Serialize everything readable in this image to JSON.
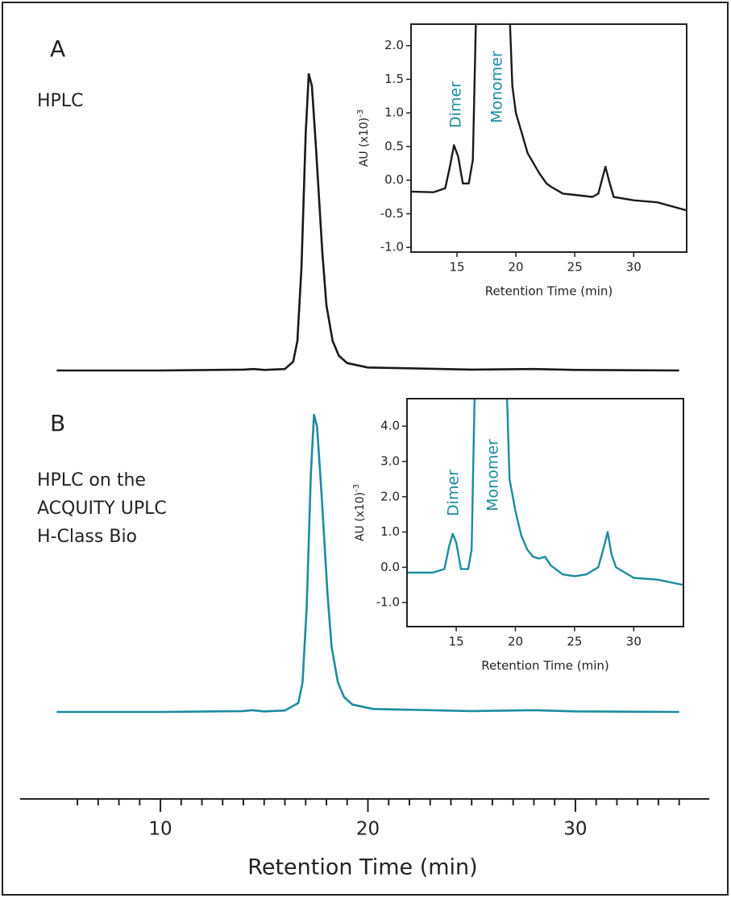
{
  "chart_data": [
    {
      "type": "line",
      "xlabel": "Retention Time (min)",
      "xlim": [
        3.24,
        36.45
      ],
      "xticks": [
        10,
        20,
        30
      ],
      "xminorticks": [
        6,
        7,
        8,
        9,
        11,
        12,
        13,
        14,
        15,
        16,
        17,
        18,
        19,
        21,
        22,
        23,
        24,
        25,
        26,
        27,
        28,
        29,
        31,
        32,
        33,
        34,
        35
      ],
      "panels": [
        {
          "label": "A",
          "name": [
            "HPLC"
          ],
          "color": "#1a1a1a",
          "ylim": [
            0,
            100
          ],
          "x": [
            5,
            10,
            14,
            14.5,
            15,
            16,
            16.4,
            16.6,
            16.8,
            17,
            17.15,
            17.3,
            17.5,
            17.8,
            18,
            18.3,
            18.6,
            19,
            20,
            25,
            28,
            30,
            35
          ],
          "values": [
            0,
            0,
            0.3,
            0.5,
            0.2,
            0.5,
            3,
            10,
            35,
            80,
            100,
            96,
            75,
            40,
            22,
            10,
            5,
            2.5,
            1,
            0.3,
            0.5,
            0.2,
            0
          ]
        },
        {
          "label": "B",
          "name": [
            "HPLC on the",
            "ACQUITY UPLC",
            "H-Class Bio"
          ],
          "color": "#1c8c9e",
          "ylim": [
            0,
            100
          ],
          "x": [
            5,
            10,
            14,
            14.4,
            15,
            16,
            16.65,
            16.85,
            17.05,
            17.25,
            17.4,
            17.55,
            17.75,
            18.05,
            18.25,
            18.55,
            18.85,
            19.25,
            20.25,
            25,
            28,
            30,
            35
          ],
          "values": [
            0,
            0,
            0.3,
            0.6,
            0.2,
            0.5,
            3,
            10,
            35,
            80,
            100,
            96,
            75,
            40,
            22,
            10,
            5,
            2.5,
            1,
            0.3,
            0.6,
            0.2,
            0
          ]
        }
      ]
    },
    {
      "type": "line",
      "xlabel": "Retention Time (min)",
      "ylabel": "AU (x10)",
      "ylabel_exponent": "-3",
      "color": "#1a1a1a",
      "annotations": [
        "Dimer",
        "Monomer"
      ],
      "annotation_color": "#1c8c9e",
      "xlim": [
        11.1,
        34.5
      ],
      "ylim": [
        -1.07,
        2.32
      ],
      "xticks": [
        15,
        20,
        25,
        30
      ],
      "yticks": [
        {
          "value": -1,
          "label": "-1.0"
        },
        -0.5,
        {
          "value": 0,
          "label": "0.0"
        },
        0.5,
        {
          "value": 1,
          "label": "1.0"
        },
        1.5,
        {
          "value": 2,
          "label": "2.0"
        }
      ],
      "x": [
        11.1,
        13,
        14,
        14.4,
        14.75,
        15.1,
        15.5,
        16.0,
        16.35,
        16.6,
        18,
        19.5,
        19.7,
        20,
        20.5,
        21,
        21.5,
        22,
        22.6,
        23,
        24,
        25,
        26.5,
        27,
        27.3,
        27.6,
        27.9,
        28.3,
        30,
        32,
        34.5
      ],
      "values": [
        -0.17,
        -0.18,
        -0.12,
        0.2,
        0.52,
        0.35,
        -0.05,
        -0.05,
        0.3,
        2.32,
        null,
        2.32,
        1.4,
        1.0,
        0.7,
        0.4,
        0.25,
        0.1,
        -0.05,
        -0.1,
        -0.2,
        -0.22,
        -0.25,
        -0.2,
        0.0,
        0.2,
        0.0,
        -0.25,
        -0.3,
        -0.33,
        -0.45
      ]
    },
    {
      "type": "line",
      "xlabel": "Retention Time (min)",
      "ylabel": "AU (x10)",
      "ylabel_exponent": "-3",
      "color": "#1c8c9e",
      "annotations": [
        "Dimer",
        "Monomer"
      ],
      "annotation_color": "#1c8c9e",
      "xlim": [
        10.84,
        34.2
      ],
      "ylim": [
        -1.68,
        4.78
      ],
      "xticks": [
        15,
        20,
        25,
        30
      ],
      "yticks": [
        {
          "value": -1,
          "label": "-1.0"
        },
        {
          "value": 0,
          "label": "0.0"
        },
        {
          "value": 1,
          "label": "1.0"
        },
        {
          "value": 2,
          "label": "2.0"
        },
        {
          "value": 3,
          "label": "3.0"
        },
        {
          "value": 4,
          "label": "4.0"
        }
      ],
      "x": [
        10.84,
        13,
        14,
        14.4,
        14.7,
        15.0,
        15.4,
        16.0,
        16.3,
        16.55,
        18,
        19.3,
        19.5,
        20,
        20.5,
        21,
        21.5,
        22,
        22.5,
        23,
        24,
        25,
        26,
        27,
        27.5,
        27.8,
        28.1,
        28.5,
        30,
        32,
        34.2
      ],
      "values": [
        -0.15,
        -0.15,
        -0.05,
        0.6,
        0.95,
        0.7,
        -0.05,
        -0.05,
        0.5,
        4.78,
        null,
        4.78,
        2.5,
        1.6,
        0.9,
        0.5,
        0.3,
        0.25,
        0.3,
        0.05,
        -0.2,
        -0.25,
        -0.2,
        0.0,
        0.6,
        1.0,
        0.4,
        0.0,
        -0.3,
        -0.35,
        -0.5
      ]
    }
  ]
}
